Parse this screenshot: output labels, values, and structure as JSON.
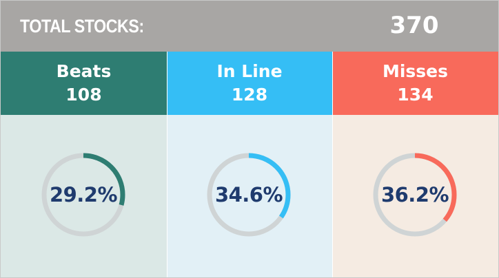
{
  "header": {
    "label": "TOTAL STOCKS:",
    "total": "370"
  },
  "columns": [
    {
      "name": "Beats",
      "count": "108",
      "pct_label": "29.2%",
      "pct": 29.2,
      "head_color": "#2e7d72",
      "body_color": "#dbe8e6",
      "arc_color": "#2e7d72"
    },
    {
      "name": "In Line",
      "count": "128",
      "pct_label": "34.6%",
      "pct": 34.6,
      "head_color": "#35bef5",
      "body_color": "#e2f0f6",
      "arc_color": "#35bef5"
    },
    {
      "name": "Misses",
      "count": "134",
      "pct_label": "36.2%",
      "pct": 36.2,
      "head_color": "#f86a5b",
      "body_color": "#f5ebe2",
      "arc_color": "#f86a5b"
    }
  ],
  "chart_data": {
    "type": "pie",
    "title": "TOTAL STOCKS:",
    "total": 370,
    "categories": [
      "Beats",
      "In Line",
      "Misses"
    ],
    "values": [
      108,
      128,
      134
    ],
    "percentages": [
      29.2,
      34.6,
      36.2
    ],
    "track_color": "#cfd4d5"
  }
}
